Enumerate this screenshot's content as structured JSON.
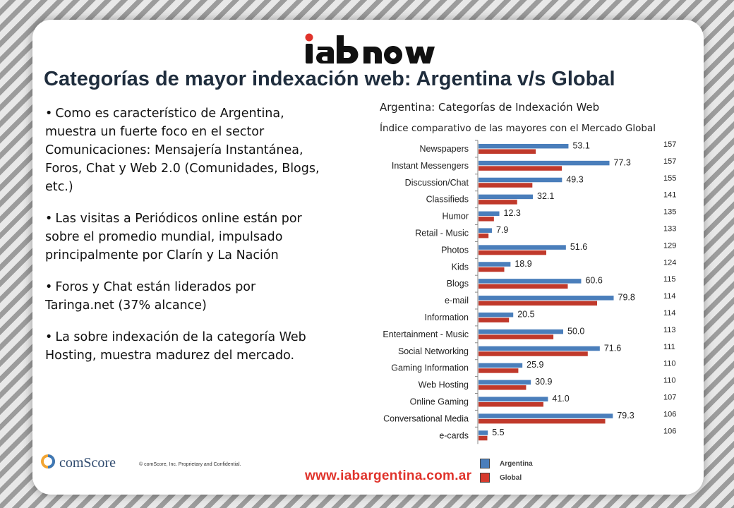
{
  "logo": {
    "text": "iab now",
    "icon": "iab-now-logo"
  },
  "page_title": "Categorías de mayor indexación web: Argentina v/s Global",
  "bullets": [
    "Como es característico de Argentina, muestra un fuerte foco en el sector Comunicaciones: Mensajería Instantánea, Foros, Chat y Web 2.0 (Comunidades, Blogs, etc.)",
    "Las visitas a Periódicos online están por sobre el promedio mundial, impulsado principalmente por Clarín y La Nación",
    "Foros y Chat están liderados por Taringa.net (37% alcance)",
    "La sobre indexación de la categoría Web Hosting, muestra madurez del mercado."
  ],
  "chart_data": {
    "type": "bar",
    "orientation": "horizontal",
    "title": "Argentina: Categorías de Indexación Web",
    "subtitle": "Índice comparativo de las mayores con el Mercado Global",
    "categories": [
      "Newspapers",
      "Instant Messengers",
      "Discussion/Chat",
      "Classifieds",
      "Humor",
      "Retail - Music",
      "Photos",
      "Kids",
      "Blogs",
      "e-mail",
      "Information",
      "Entertainment - Music",
      "Social Networking",
      "Gaming Information",
      "Web Hosting",
      "Online Gaming",
      "Conversational Media",
      "e-cards"
    ],
    "series": [
      {
        "name": "Argentina",
        "color": "#4a7ebb",
        "values": [
          53.1,
          77.3,
          49.3,
          32.1,
          12.3,
          7.9,
          51.6,
          18.9,
          60.6,
          79.8,
          20.5,
          50.0,
          71.6,
          25.9,
          30.9,
          41.0,
          79.3,
          5.5
        ]
      },
      {
        "name": "Global",
        "color": "#c0392b",
        "values": [
          33.8,
          49.2,
          31.8,
          22.8,
          9.1,
          5.9,
          40.0,
          15.2,
          52.7,
          70.0,
          18.0,
          44.2,
          64.5,
          23.5,
          28.1,
          38.3,
          74.8,
          5.2
        ]
      }
    ],
    "value_labels": [
      "53.1",
      "77.3",
      "49.3",
      "32.1",
      "12.3",
      "7.9",
      "51.6",
      "18.9",
      "60.6",
      "79.8",
      "20.5",
      "50.0",
      "71.6",
      "25.9",
      "30.9",
      "41.0",
      "79.3",
      "5.5"
    ],
    "index": [
      "157",
      "157",
      "155",
      "141",
      "135",
      "133",
      "129",
      "124",
      "115",
      "114",
      "114",
      "113",
      "111",
      "110",
      "110",
      "107",
      "106",
      "106"
    ],
    "xlim": [
      0,
      100
    ],
    "grid": false,
    "legend": {
      "position": "bottom",
      "entries": [
        "Argentina",
        "Global"
      ]
    }
  },
  "footer": {
    "company": "comScore",
    "copyright": "© comScore, Inc.   Proprietary and Confidential.",
    "url": "www.iabargentina.com.ar"
  }
}
